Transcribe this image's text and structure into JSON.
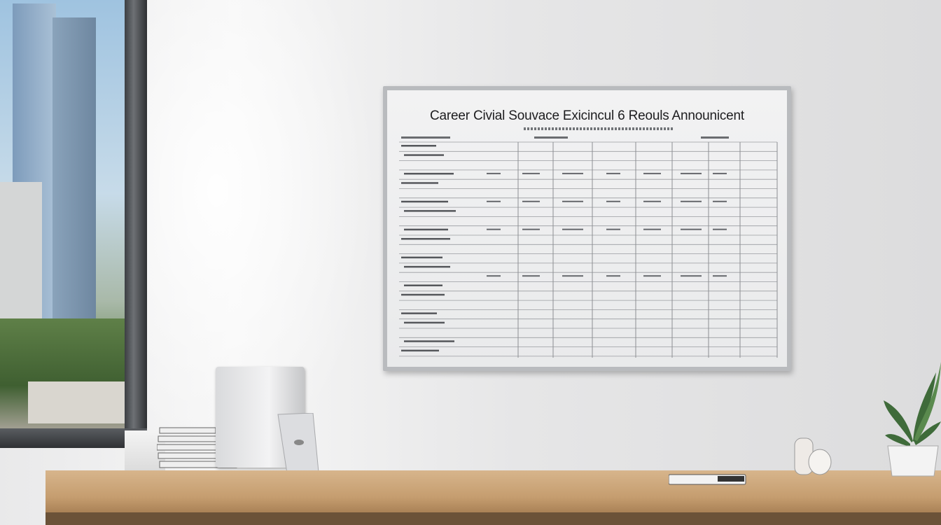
{
  "board": {
    "title": "Career Civial Souvace Exicincul 6 Reouls Announicent"
  },
  "colors": {
    "wall": "#e9e9ea",
    "board_frame": "#b9bbbe",
    "desk": "#c59d6f",
    "window_frame": "#3c3f43"
  }
}
